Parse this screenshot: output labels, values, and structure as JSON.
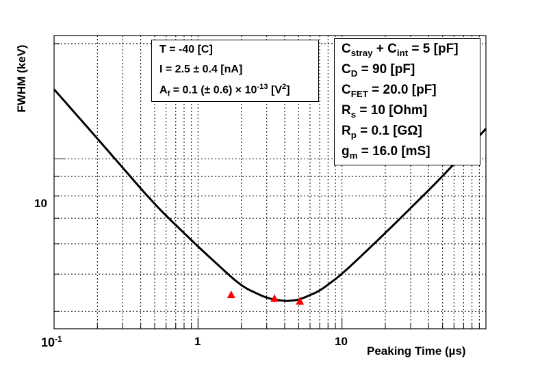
{
  "chart_data": {
    "type": "line",
    "xlabel": "Peaking Time (µs)",
    "ylabel": "FWHM (keV)",
    "x_scale": "log",
    "y_scale": "log",
    "xlim": [
      0.1,
      100
    ],
    "ylim": [
      3.6,
      21
    ],
    "grid": true,
    "x_tick_labels": [
      "10^-1",
      "1",
      "10"
    ],
    "y_tick_labels": [
      "10"
    ],
    "fit_curve": {
      "x": [
        0.1,
        0.2,
        0.5,
        1,
        2,
        3,
        4,
        5,
        7,
        10,
        20,
        50,
        100
      ],
      "y": [
        15.2,
        11.3,
        7.6,
        5.9,
        4.65,
        4.33,
        4.25,
        4.28,
        4.52,
        5.0,
        6.4,
        9.0,
        12.0
      ]
    },
    "measurements": {
      "x": [
        1.7,
        3.4,
        5.1
      ],
      "y": [
        4.42,
        4.32,
        4.25
      ],
      "yerr": [
        0.07,
        0.1,
        0.1
      ],
      "marker": "triangle",
      "color": "#ff0000"
    },
    "annotations": {
      "left_box": {
        "temp": "T = -40 [C]",
        "current": "I = 2.5 ± 0.4 [nA]",
        "af_prefix": "A",
        "af_sub": "f",
        "af_value": " = 0.1 (± 0.6) × 10",
        "af_exp": "-13",
        "af_unit_open": " [V",
        "af_unit_exp": "2",
        "af_unit_close": "]"
      },
      "right_box": {
        "cstray_c1": "C",
        "cstray_s1": "stray",
        "cstray_plus": " + C",
        "cstray_s2": "int",
        "cstray_tail": " = 5 [pF]",
        "cd_c": "C",
        "cd_s": "D",
        "cd_tail": " = 90 [pF]",
        "cfet_c": "C",
        "cfet_s": "FET",
        "cfet_tail": " = 20.0 [pF]",
        "rs_c": "R",
        "rs_s": "s",
        "rs_tail": " = 10 [Ohm]",
        "rp_c": "R",
        "rp_s": "p",
        "rp_tail": " = 0.1 [GΩ]",
        "gm_c": "g",
        "gm_s": "m",
        "gm_tail": " = 16.0 [mS]"
      }
    }
  }
}
